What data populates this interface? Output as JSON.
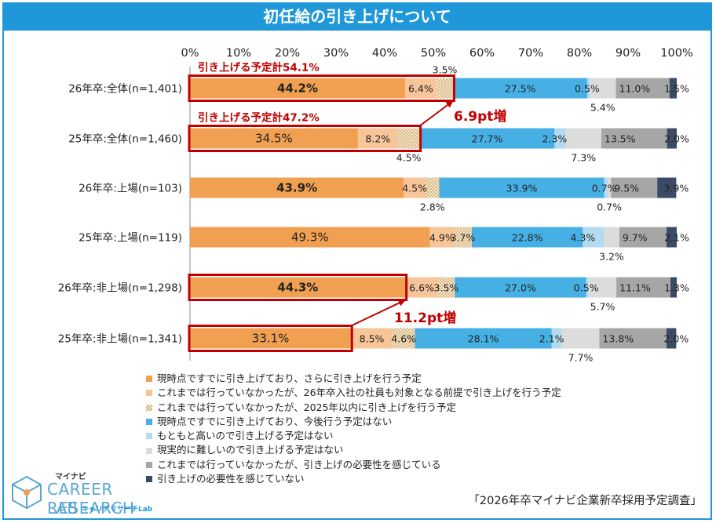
{
  "title": "初任給の引き上げについて",
  "source": "「2026年卒マイナビ企業新卒採用予定調査」",
  "logo": {
    "brand": "マイナビ",
    "line1": "CAREER RESEARCH",
    "line2": "LAB",
    "kana": "キャリアリサーチLab"
  },
  "colors": {
    "frame": "#1f97d9",
    "highlight": "#c00000",
    "segments": [
      "#f0a050",
      "#f8c598",
      "#f0d8b8",
      "#46b0e5",
      "#b3dbf0",
      "#dcdcdc",
      "#a6a6a6",
      "#3b4a66"
    ]
  },
  "chart_data": {
    "type": "bar",
    "orientation": "horizontal",
    "stacked": true,
    "title": "初任給の引き上げについて",
    "xlim": [
      0,
      100
    ],
    "x_ticks": [
      "0%",
      "10%",
      "20%",
      "30%",
      "40%",
      "50%",
      "60%",
      "70%",
      "80%",
      "90%",
      "100%"
    ],
    "categories": [
      "26年卒:全体(n=1,401)",
      "25年卒:全体(n=1,460)",
      "26年卒:上場(n=103)",
      "25年卒:上場(n=119)",
      "26年卒:非上場(n=1,298)",
      "25年卒:非上場(n=1,341)"
    ],
    "series": [
      {
        "name": "現時点ですでに引き上げており、さらに引き上げを行う予定",
        "values": [
          44.2,
          34.5,
          43.9,
          49.3,
          44.3,
          33.1
        ],
        "labels": [
          "44.2%",
          "34.5%",
          "43.9%",
          "49.3%",
          "44.3%",
          "33.1%"
        ]
      },
      {
        "name": "これまでは行っていなかったが、26年卒入社の社員も対象となる前提で引き上げを行う予定",
        "values": [
          6.4,
          8.2,
          4.5,
          4.9,
          6.6,
          8.5
        ],
        "labels": [
          "6.4%",
          "8.2%",
          "4.5%",
          "4.9%",
          "6.6%",
          "8.5%"
        ]
      },
      {
        "name": "これまでは行っていなかったが、2025年以内に引き上げを行う予定",
        "values": [
          3.5,
          4.5,
          2.8,
          3.7,
          3.5,
          4.6
        ],
        "labels": [
          "3.5%",
          "4.5%",
          "2.8%",
          "3.7%",
          "3.5%",
          "4.6%"
        ]
      },
      {
        "name": "現時点ですでに引き上げており、今後行う予定はない",
        "values": [
          27.5,
          27.7,
          33.9,
          22.8,
          27.0,
          28.1
        ],
        "labels": [
          "27.5%",
          "27.7%",
          "33.9%",
          "22.8%",
          "27.0%",
          "28.1%"
        ]
      },
      {
        "name": "もともと高いので引き上げる予定はない",
        "values": [
          0.5,
          2.3,
          0.7,
          4.3,
          0.5,
          2.1
        ],
        "labels": [
          "0.5%",
          "2.3%",
          "0.7%",
          "4.3%",
          "0.5%",
          "2.1%"
        ]
      },
      {
        "name": "現実的に難しいので引き上げる予定はない",
        "values": [
          5.4,
          7.3,
          0.7,
          3.2,
          5.7,
          7.7
        ],
        "labels": [
          "5.4%",
          "7.3%",
          "0.7%",
          "3.2%",
          "5.7%",
          "7.7%"
        ]
      },
      {
        "name": "これまでは行っていなかったが、引き上げの必要性を感じている",
        "values": [
          11.0,
          13.5,
          9.5,
          9.7,
          11.1,
          13.8
        ],
        "labels": [
          "11.0%",
          "13.5%",
          "9.5%",
          "9.7%",
          "11.1%",
          "13.8%"
        ]
      },
      {
        "name": "引き上げの必要性を感じていない",
        "values": [
          1.5,
          2.0,
          3.9,
          2.1,
          1.3,
          2.0
        ],
        "labels": [
          "1.5%",
          "2.0%",
          "3.9%",
          "2.1%",
          "1.3%",
          "2.0%"
        ]
      }
    ],
    "annotations": [
      {
        "text": "引き上げる予定計54.1%",
        "bar_index": 0,
        "span": [
          0,
          54.1
        ]
      },
      {
        "text": "引き上げる予定計47.2%",
        "bar_index": 1,
        "span": [
          0,
          47.2
        ]
      },
      {
        "text": "6.9pt増",
        "from_bar": 1,
        "to_bar": 0
      },
      {
        "text": "11.2pt増",
        "from_bar": 5,
        "to_bar": 4,
        "box_bars": [
          4,
          5
        ],
        "box_spans": [
          [
            0,
            44.3
          ],
          [
            0,
            33.1
          ]
        ]
      }
    ]
  }
}
